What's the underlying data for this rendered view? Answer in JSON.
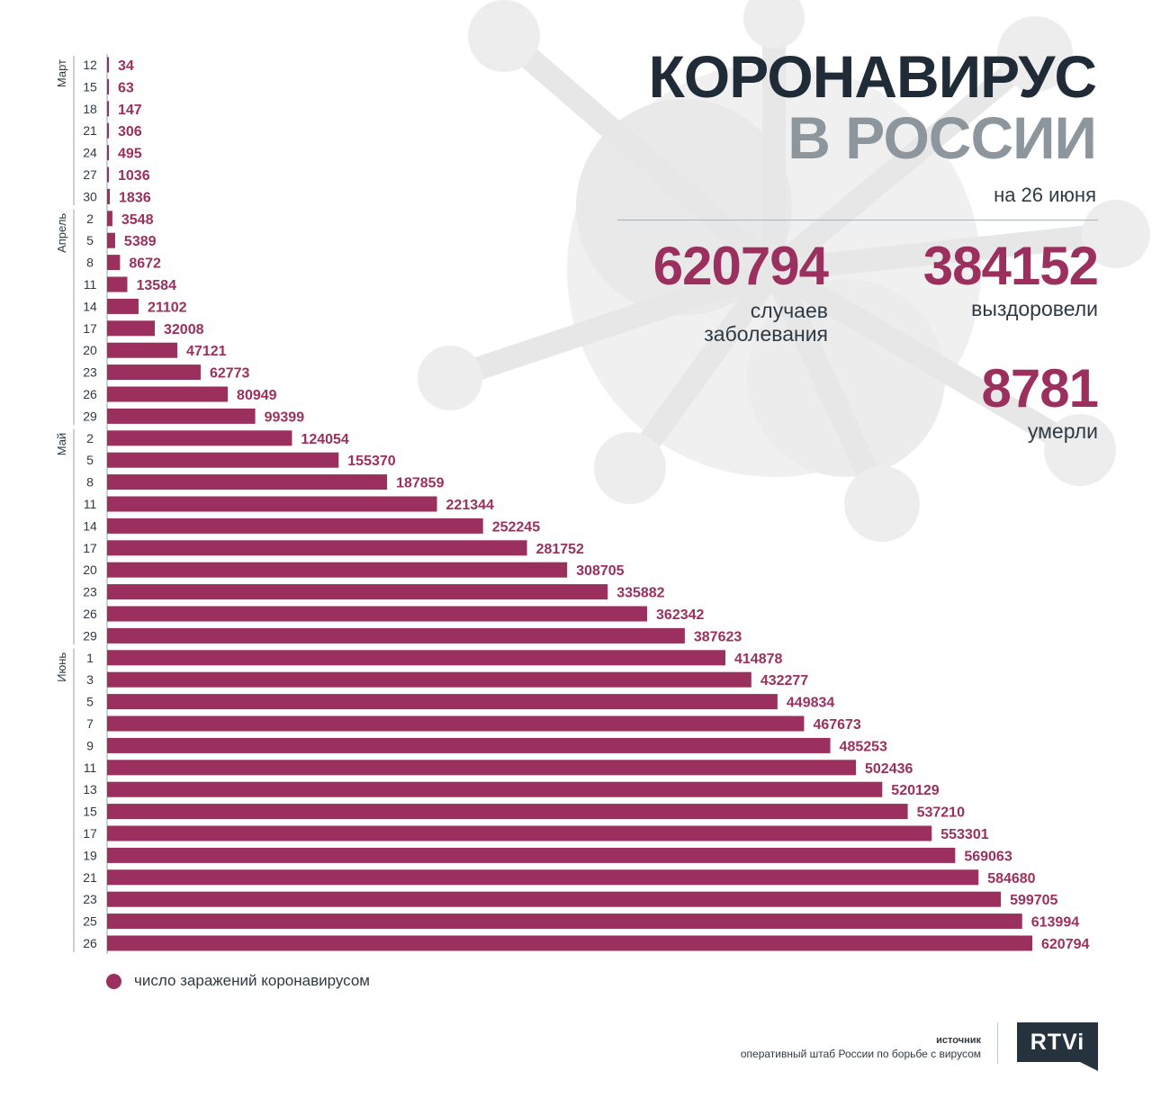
{
  "header": {
    "title_line1": "КОРОНАВИРУС",
    "title_line2": "В РОССИИ",
    "date": "на 26 июня"
  },
  "stats": {
    "cases": {
      "value": "620794",
      "label_line1": "случаев",
      "label_line2": "заболевания"
    },
    "recovered": {
      "value": "384152",
      "label": "выздоровели"
    },
    "deaths": {
      "value": "8781",
      "label": "умерли"
    }
  },
  "legend": {
    "label": "число заражений коронавирусом"
  },
  "source": {
    "title": "источник",
    "text": "оперативный штаб России по борьбе с вирусом"
  },
  "logo": {
    "text": "RTVi"
  },
  "colors": {
    "bar": "#9b2f5e",
    "title_dark": "#1f2b36",
    "title_grey": "#8d969c",
    "text": "#2e3a44"
  },
  "chart_data": {
    "type": "bar",
    "orientation": "horizontal",
    "title": "",
    "xlabel": "",
    "ylabel": "",
    "grid": false,
    "months": [
      {
        "name": "Март",
        "from": 0,
        "to": 6
      },
      {
        "name": "Апрель",
        "from": 7,
        "to": 16
      },
      {
        "name": "Май",
        "from": 17,
        "to": 26
      },
      {
        "name": "Июнь",
        "from": 27,
        "to": 40
      }
    ],
    "categories": [
      "12",
      "15",
      "18",
      "21",
      "24",
      "27",
      "30",
      "2",
      "5",
      "8",
      "11",
      "14",
      "17",
      "20",
      "23",
      "26",
      "29",
      "2",
      "5",
      "8",
      "11",
      "14",
      "17",
      "20",
      "23",
      "26",
      "29",
      "1",
      "3",
      "5",
      "7",
      "9",
      "11",
      "13",
      "15",
      "17",
      "19",
      "21",
      "23",
      "25",
      "26"
    ],
    "series": [
      {
        "name": "число заражений коронавирусом",
        "values": [
          34,
          63,
          147,
          306,
          495,
          1036,
          1836,
          3548,
          5389,
          8672,
          13584,
          21102,
          32008,
          47121,
          62773,
          80949,
          99399,
          124054,
          155370,
          187859,
          221344,
          252245,
          281752,
          308705,
          335882,
          362342,
          387623,
          414878,
          432277,
          449834,
          467673,
          485253,
          502436,
          520129,
          537210,
          553301,
          569063,
          584680,
          599705,
          613994,
          620794
        ]
      }
    ]
  }
}
